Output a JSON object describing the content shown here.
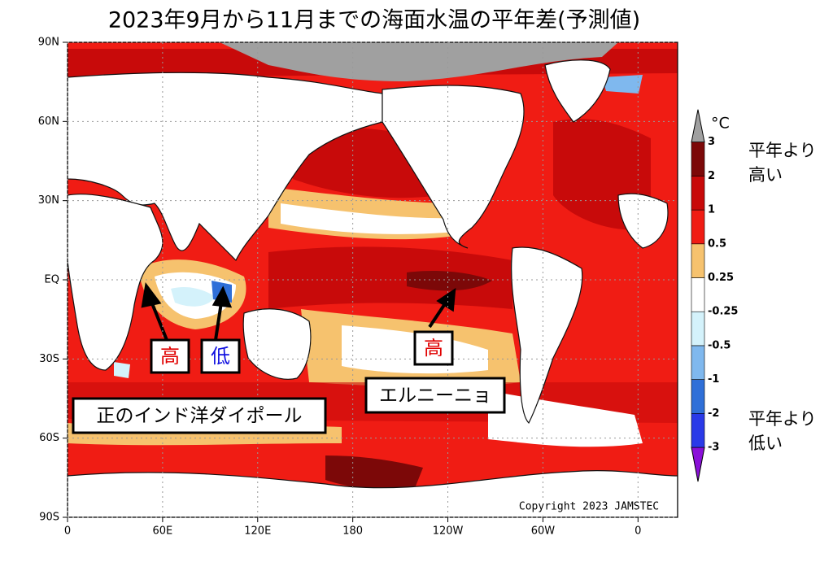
{
  "title": "2023年9月から11月までの海面水温の平年差(予測値)",
  "map": {
    "xlim": [
      0,
      385
    ],
    "ylim": [
      -90,
      90
    ],
    "xticks": [
      0,
      {
        "value": 60,
        "label": "60E"
      },
      {
        "value": 120,
        "label": "120E"
      },
      180,
      {
        "value": 240,
        "label": "120W"
      },
      {
        "value": 300,
        "label": "60W"
      },
      {
        "value": 360,
        "label": "0"
      }
    ],
    "yticks": [
      {
        "value": -90,
        "label": "90S"
      },
      {
        "value": -60,
        "label": "60S"
      },
      {
        "value": -30,
        "label": "30S"
      },
      {
        "value": 0,
        "label": "EQ"
      },
      {
        "value": 30,
        "label": "30N"
      },
      {
        "value": 60,
        "label": "60N"
      },
      {
        "value": 90,
        "label": "90N"
      }
    ],
    "copyright": "Copyright 2023 JAMSTEC"
  },
  "colorbar": {
    "unit": "°C",
    "levels": [
      -3,
      -2,
      -1,
      -0.5,
      -0.25,
      0.25,
      0.5,
      1,
      2,
      3
    ],
    "colors": [
      "#8a10d8",
      "#2a3ae8",
      "#2f6fd8",
      "#7fb8ee",
      "#d4f2fb",
      "#ffffff",
      "#f6c26e",
      "#f01c14",
      "#c80a0a",
      "#7c0808",
      "#a0a0a0"
    ]
  },
  "legend_notes": {
    "high": [
      "平年より",
      "高い"
    ],
    "low": [
      "平年より",
      "低い"
    ]
  },
  "annotations": [
    {
      "text": "高",
      "color": "#e00000"
    },
    {
      "text": "低",
      "color": "#1010e0"
    },
    {
      "text": "高",
      "color": "#e00000"
    },
    {
      "text": "正のインド洋ダイポール",
      "color": "#000000"
    },
    {
      "text": "エルニーニョ",
      "color": "#000000"
    }
  ]
}
